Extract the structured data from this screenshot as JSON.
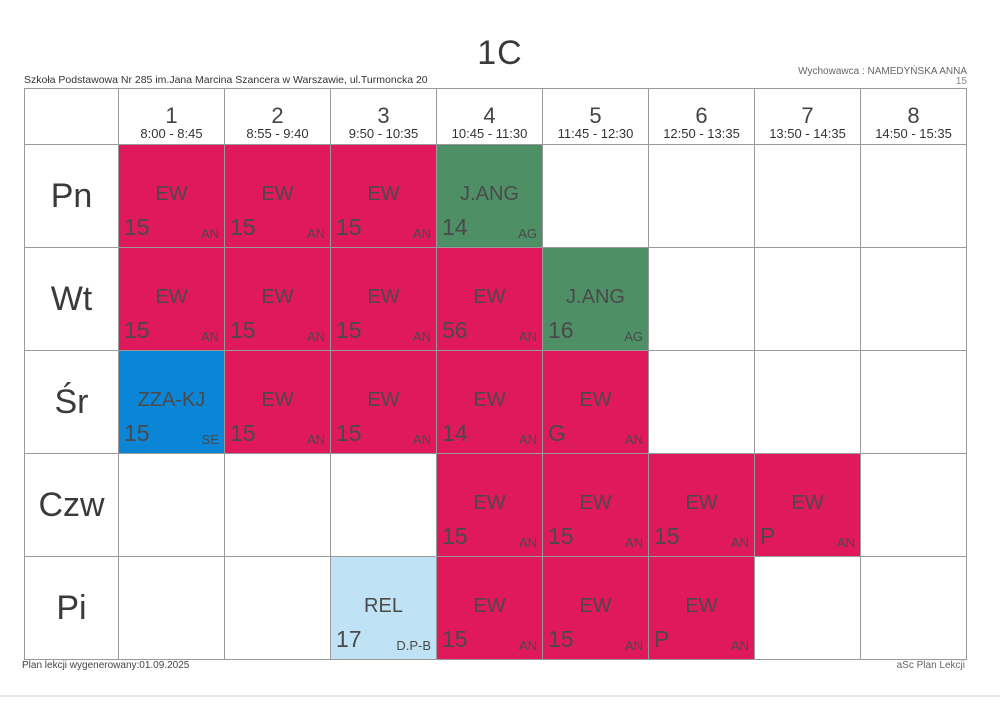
{
  "header": {
    "class_name": "1C",
    "school": "Szkoła Podstawowa Nr 285 im.Jana Marcina Szancera w Warszawie, ul.Turmoncka 20",
    "homeroom_teacher": "Wychowawca : NAMEDYŃSKA ANNA",
    "homeroom_room": "15"
  },
  "periods": [
    {
      "num": "1",
      "time": "8:00 - 8:45"
    },
    {
      "num": "2",
      "time": "8:55 - 9:40"
    },
    {
      "num": "3",
      "time": "9:50 - 10:35"
    },
    {
      "num": "4",
      "time": "10:45 - 11:30"
    },
    {
      "num": "5",
      "time": "11:45 - 12:30"
    },
    {
      "num": "6",
      "time": "12:50 - 13:35"
    },
    {
      "num": "7",
      "time": "13:50 - 14:35"
    },
    {
      "num": "8",
      "time": "14:50 - 15:35"
    }
  ],
  "colors": {
    "EW": "#e0195c",
    "J.ANG": "#4e8f66",
    "ZZA-KJ": "#0b86d6",
    "REL": "#bfe3f5"
  },
  "days": [
    {
      "name": "Pn",
      "lessons": [
        {
          "subj": "EW",
          "room": "15",
          "teacher": "AN"
        },
        {
          "subj": "EW",
          "room": "15",
          "teacher": "AN"
        },
        {
          "subj": "EW",
          "room": "15",
          "teacher": "AN"
        },
        {
          "subj": "J.ANG",
          "room": "14",
          "teacher": "AG"
        },
        null,
        null,
        null,
        null
      ]
    },
    {
      "name": "Wt",
      "lessons": [
        {
          "subj": "EW",
          "room": "15",
          "teacher": "AN"
        },
        {
          "subj": "EW",
          "room": "15",
          "teacher": "AN"
        },
        {
          "subj": "EW",
          "room": "15",
          "teacher": "AN"
        },
        {
          "subj": "EW",
          "room": "56",
          "teacher": "AN"
        },
        {
          "subj": "J.ANG",
          "room": "16",
          "teacher": "AG"
        },
        null,
        null,
        null
      ]
    },
    {
      "name": "Śr",
      "lessons": [
        {
          "subj": "ZZA-KJ",
          "room": "15",
          "teacher": "SE"
        },
        {
          "subj": "EW",
          "room": "15",
          "teacher": "AN"
        },
        {
          "subj": "EW",
          "room": "15",
          "teacher": "AN"
        },
        {
          "subj": "EW",
          "room": "14",
          "teacher": "AN"
        },
        {
          "subj": "EW",
          "room": "G",
          "teacher": "AN"
        },
        null,
        null,
        null
      ]
    },
    {
      "name": "Czw",
      "lessons": [
        null,
        null,
        null,
        {
          "subj": "EW",
          "room": "15",
          "teacher": "AN"
        },
        {
          "subj": "EW",
          "room": "15",
          "teacher": "AN"
        },
        {
          "subj": "EW",
          "room": "15",
          "teacher": "AN"
        },
        {
          "subj": "EW",
          "room": "P",
          "teacher": "AN"
        },
        null
      ]
    },
    {
      "name": "Pi",
      "lessons": [
        null,
        null,
        {
          "subj": "REL",
          "room": "17",
          "teacher": "D.P-B"
        },
        {
          "subj": "EW",
          "room": "15",
          "teacher": "AN"
        },
        {
          "subj": "EW",
          "room": "15",
          "teacher": "AN"
        },
        {
          "subj": "EW",
          "room": "P",
          "teacher": "AN"
        },
        null,
        null
      ]
    }
  ],
  "footer": {
    "generated": "Plan lekcji wygenerowany:01.09.2025",
    "software": "aSc Plan Lekcji"
  }
}
